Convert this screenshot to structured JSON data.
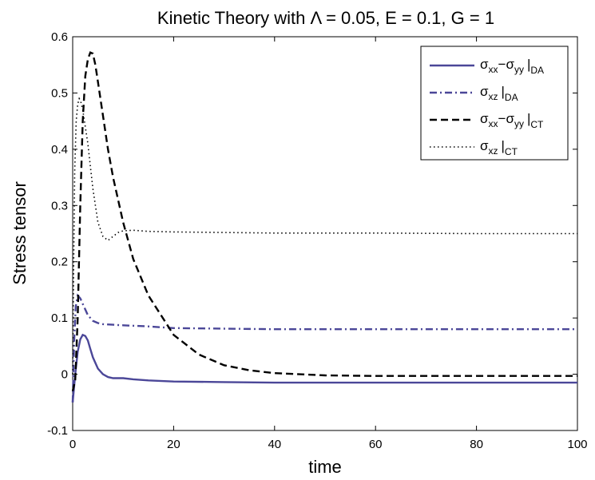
{
  "chart_data": {
    "type": "line",
    "title": "Kinetic Theory with  Λ = 0.05, E = 0.1, G = 1",
    "xlabel": "time",
    "ylabel": "Stress tensor",
    "xlim": [
      0,
      100
    ],
    "ylim": [
      -0.1,
      0.6
    ],
    "xticks": [
      "0",
      "20",
      "40",
      "60",
      "80",
      "100"
    ],
    "yticks": [
      "-0.1",
      "0",
      "0.1",
      "0.2",
      "0.3",
      "0.4",
      "0.5",
      "0.6"
    ],
    "grid": false,
    "legend_position": "top-right",
    "series": [
      {
        "legend": {
          "sym1": "σ",
          "sub1": "xx",
          "dash": "−",
          "sym2": "σ",
          "sub2": "yy",
          "bar": "|",
          "sub3": "DA"
        },
        "color": "#4B4798",
        "style": "solid",
        "x": [
          0,
          0.5,
          1,
          1.5,
          2,
          2.5,
          3,
          3.5,
          4,
          5,
          6,
          7,
          8,
          9,
          10,
          12,
          15,
          20,
          30,
          40,
          60,
          80,
          100
        ],
        "y": [
          -0.05,
          0.0,
          0.04,
          0.062,
          0.07,
          0.068,
          0.06,
          0.045,
          0.03,
          0.01,
          0.0,
          -0.005,
          -0.007,
          -0.007,
          -0.007,
          -0.009,
          -0.011,
          -0.013,
          -0.014,
          -0.015,
          -0.015,
          -0.015,
          -0.015
        ]
      },
      {
        "legend": {
          "sym1": "σ",
          "sub1": "xz",
          "bar": "|",
          "sub3": "DA"
        },
        "color": "#4B4798",
        "style": "dashdot",
        "x": [
          0,
          0.3,
          0.6,
          1,
          1.5,
          2,
          3,
          4,
          5,
          6,
          8,
          10,
          15,
          20,
          30,
          40,
          60,
          80,
          100
        ],
        "y": [
          -0.05,
          0.06,
          0.12,
          0.14,
          0.135,
          0.125,
          0.105,
          0.095,
          0.091,
          0.089,
          0.088,
          0.087,
          0.085,
          0.082,
          0.081,
          0.08,
          0.08,
          0.08,
          0.08
        ]
      },
      {
        "legend": {
          "sym1": "σ",
          "sub1": "xx",
          "dash": "−",
          "sym2": "σ",
          "sub2": "yy",
          "bar": "|",
          "sub3": "CT"
        },
        "color": "#000000",
        "style": "dashed",
        "x": [
          0,
          0.5,
          1,
          1.5,
          2,
          2.5,
          3,
          3.5,
          4,
          4.5,
          5,
          6,
          7,
          8,
          10,
          12,
          15,
          20,
          25,
          30,
          35,
          40,
          50,
          60,
          80,
          100
        ],
        "y": [
          -0.03,
          -0.01,
          0.1,
          0.3,
          0.45,
          0.53,
          0.56,
          0.572,
          0.57,
          0.55,
          0.52,
          0.46,
          0.4,
          0.35,
          0.27,
          0.205,
          0.14,
          0.07,
          0.035,
          0.016,
          0.007,
          0.002,
          -0.002,
          -0.003,
          -0.003,
          -0.003
        ]
      },
      {
        "legend": {
          "sym1": "σ",
          "sub1": "xz",
          "bar": "|",
          "sub3": "CT"
        },
        "color": "#000000",
        "style": "dotted",
        "x": [
          0,
          0.2,
          0.4,
          0.7,
          1,
          1.3,
          1.6,
          2,
          2.5,
          3,
          3.5,
          4,
          5,
          6,
          7,
          8,
          9,
          10,
          12,
          15,
          20,
          30,
          40,
          60,
          80,
          100
        ],
        "y": [
          0.0,
          0.2,
          0.36,
          0.45,
          0.48,
          0.49,
          0.485,
          0.47,
          0.44,
          0.41,
          0.37,
          0.33,
          0.27,
          0.245,
          0.238,
          0.245,
          0.252,
          0.255,
          0.256,
          0.254,
          0.253,
          0.252,
          0.251,
          0.251,
          0.25,
          0.25
        ]
      }
    ]
  }
}
